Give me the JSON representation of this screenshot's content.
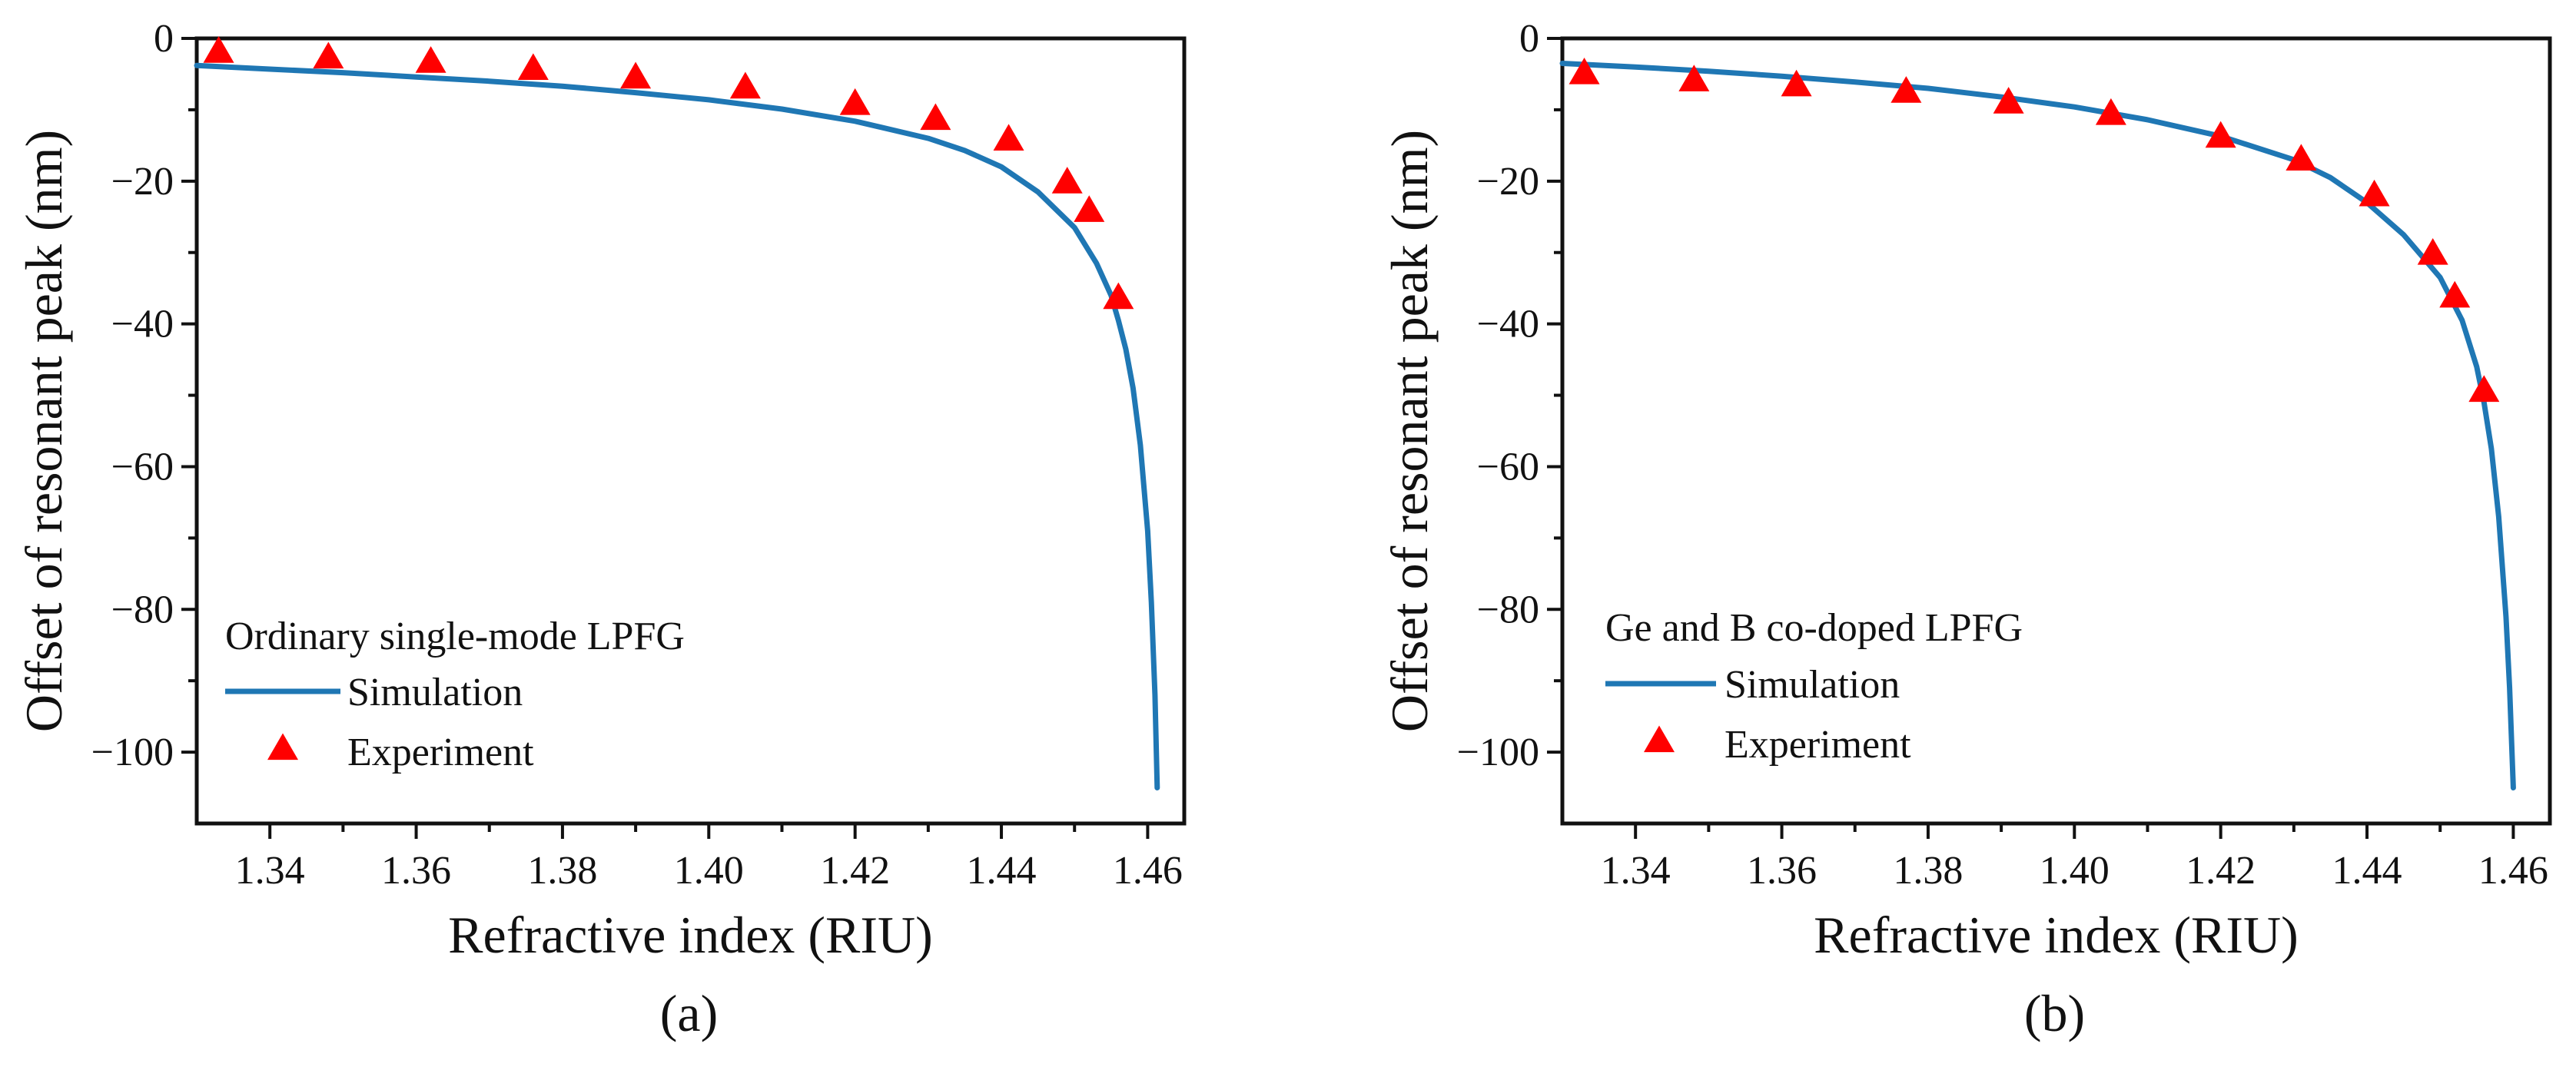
{
  "chart_data": [
    {
      "type": "line",
      "panel_label": "(a)",
      "xlabel": "Refractive index (RIU)",
      "ylabel": "Offset of resonant peak (nm)",
      "xlim": [
        1.33,
        1.465
      ],
      "ylim": [
        -110,
        0
      ],
      "xticks": [
        1.34,
        1.36,
        1.38,
        1.4,
        1.42,
        1.44,
        1.46
      ],
      "xtick_labels": [
        "1.34",
        "1.36",
        "1.38",
        "1.40",
        "1.42",
        "1.44",
        "1.46"
      ],
      "yticks": [
        0,
        -20,
        -40,
        -60,
        -80,
        -100
      ],
      "ytick_labels": [
        "0",
        "−20",
        "−40",
        "−60",
        "−80",
        "−100"
      ],
      "legend_title": "Ordinary single-mode LPFG",
      "legend_position": "lower-left",
      "series": [
        {
          "name": "Simulation",
          "kind": "line",
          "color": "#1f77b4",
          "x": [
            1.33,
            1.34,
            1.35,
            1.36,
            1.37,
            1.38,
            1.39,
            1.4,
            1.41,
            1.42,
            1.43,
            1.435,
            1.44,
            1.445,
            1.45,
            1.453,
            1.455,
            1.456,
            1.457,
            1.458,
            1.459,
            1.46,
            1.4605,
            1.461,
            1.4613
          ],
          "y": [
            -3.8,
            -4.3,
            -4.8,
            -5.4,
            -6.0,
            -6.7,
            -7.6,
            -8.6,
            -9.9,
            -11.6,
            -14.0,
            -15.7,
            -18.0,
            -21.5,
            -26.5,
            -31.5,
            -36.0,
            -39.5,
            -43.5,
            -49.0,
            -57.0,
            -69.0,
            -79.0,
            -92.0,
            -105.0
          ]
        },
        {
          "name": "Experiment",
          "kind": "scatter",
          "marker": "triangle",
          "color": "#ff0000",
          "x": [
            1.333,
            1.348,
            1.362,
            1.376,
            1.39,
            1.405,
            1.42,
            1.431,
            1.441,
            1.449,
            1.452,
            1.456
          ],
          "y": [
            -2.0,
            -2.8,
            -3.4,
            -4.4,
            -5.6,
            -7.0,
            -9.3,
            -11.4,
            -14.3,
            -20.3,
            -24.3,
            -36.5
          ]
        }
      ]
    },
    {
      "type": "line",
      "panel_label": "(b)",
      "xlabel": "Refractive index (RIU)",
      "ylabel": "Offset of resonant peak (nm)",
      "xlim": [
        1.33,
        1.465
      ],
      "ylim": [
        -110,
        0
      ],
      "xticks": [
        1.34,
        1.36,
        1.38,
        1.4,
        1.42,
        1.44,
        1.46
      ],
      "xtick_labels": [
        "1.34",
        "1.36",
        "1.38",
        "1.40",
        "1.42",
        "1.44",
        "1.46"
      ],
      "yticks": [
        0,
        -20,
        -40,
        -60,
        -80,
        -100
      ],
      "ytick_labels": [
        "0",
        "−20",
        "−40",
        "−60",
        "−80",
        "−100"
      ],
      "legend_title": "Ge and B co-doped LPFG",
      "legend_position": "lower-left",
      "series": [
        {
          "name": "Simulation",
          "kind": "line",
          "color": "#1f77b4",
          "x": [
            1.33,
            1.34,
            1.35,
            1.36,
            1.37,
            1.38,
            1.39,
            1.4,
            1.41,
            1.42,
            1.43,
            1.435,
            1.44,
            1.445,
            1.45,
            1.453,
            1.455,
            1.456,
            1.457,
            1.458,
            1.459,
            1.4595,
            1.46
          ],
          "y": [
            -3.5,
            -4.0,
            -4.6,
            -5.3,
            -6.1,
            -7.0,
            -8.2,
            -9.6,
            -11.4,
            -13.7,
            -17.0,
            -19.5,
            -23.0,
            -27.5,
            -33.5,
            -39.5,
            -46.0,
            -51.0,
            -57.5,
            -67.0,
            -81.0,
            -91.0,
            -105.0
          ]
        },
        {
          "name": "Experiment",
          "kind": "scatter",
          "marker": "triangle",
          "color": "#ff0000",
          "x": [
            1.333,
            1.348,
            1.362,
            1.377,
            1.391,
            1.405,
            1.42,
            1.431,
            1.441,
            1.449,
            1.452,
            1.456
          ],
          "y": [
            -5.0,
            -6.0,
            -6.7,
            -7.6,
            -9.1,
            -10.7,
            -13.9,
            -17.1,
            -22.1,
            -30.3,
            -36.3,
            -49.5
          ]
        }
      ]
    }
  ]
}
